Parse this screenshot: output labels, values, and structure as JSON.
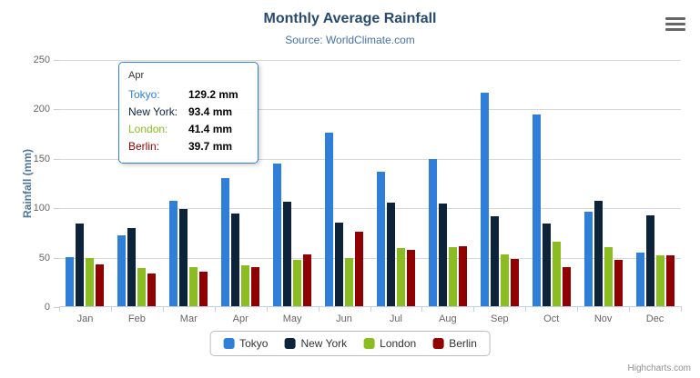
{
  "credits": "Highcharts.com",
  "chart_data": {
    "type": "bar",
    "orientation": "vertical-columns",
    "title": "Monthly Average Rainfall",
    "subtitle": "Source: WorldClimate.com",
    "xlabel": "",
    "ylabel": "Rainfall (mm)",
    "ylim": [
      0,
      250
    ],
    "yticks": [
      0,
      50,
      100,
      150,
      200,
      250
    ],
    "grid": true,
    "legend_position": "bottom",
    "categories": [
      "Jan",
      "Feb",
      "Mar",
      "Apr",
      "May",
      "Jun",
      "Jul",
      "Aug",
      "Sep",
      "Oct",
      "Nov",
      "Dec"
    ],
    "series": [
      {
        "name": "Tokyo",
        "color": "#2f7ed8",
        "values": [
          49.9,
          71.5,
          106.4,
          129.2,
          144.0,
          176.0,
          135.6,
          148.5,
          216.4,
          194.1,
          95.6,
          54.4
        ]
      },
      {
        "name": "New York",
        "color": "#0d233a",
        "values": [
          83.6,
          78.8,
          98.5,
          93.4,
          106.0,
          84.5,
          105.0,
          104.3,
          91.2,
          83.5,
          106.6,
          92.3
        ]
      },
      {
        "name": "London",
        "color": "#8bbc21",
        "values": [
          48.9,
          38.8,
          39.3,
          41.4,
          47.0,
          48.3,
          59.0,
          59.6,
          52.4,
          65.2,
          59.3,
          51.2
        ]
      },
      {
        "name": "Berlin",
        "color": "#910000",
        "values": [
          42.4,
          33.2,
          34.5,
          39.7,
          52.6,
          75.5,
          57.4,
          60.4,
          47.6,
          39.1,
          46.8,
          51.1
        ]
      }
    ]
  },
  "tooltip": {
    "header": "Apr",
    "rows": [
      {
        "label": "Tokyo:",
        "value": "129.2 mm",
        "color": "#2f7ed8"
      },
      {
        "label": "New York:",
        "value": "93.4 mm",
        "color": "#0d233a"
      },
      {
        "label": "London:",
        "value": "41.4 mm",
        "color": "#8bbc21"
      },
      {
        "label": "Berlin:",
        "value": "39.7 mm",
        "color": "#910000"
      }
    ],
    "border_color": "#2f7ed8"
  }
}
